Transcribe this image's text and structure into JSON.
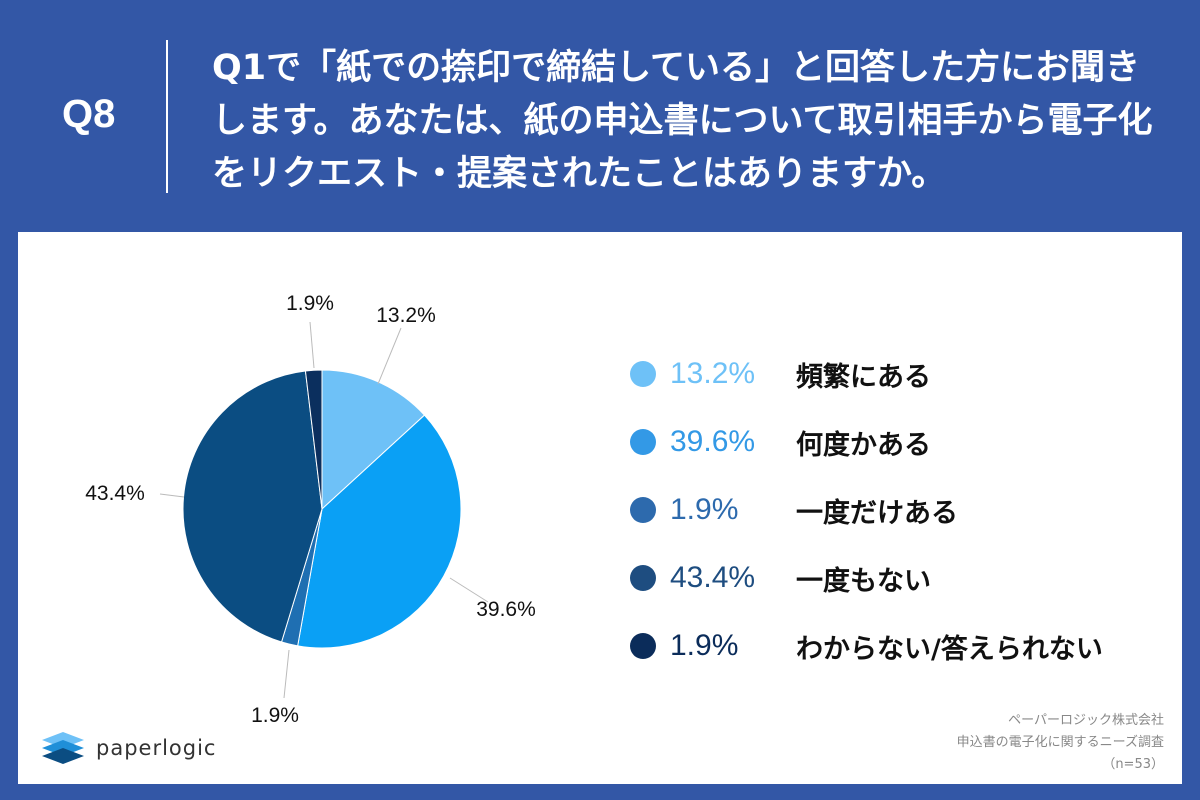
{
  "header": {
    "q_number": "Q8",
    "question_lines": [
      "Q1で「紙での捺印で締結している」と回答した方にお聞き",
      "します。あなたは、紙の申込書について取引相手から電子化",
      "をリクエスト・提案されたことはありますか。"
    ]
  },
  "chart_data": {
    "type": "pie",
    "slices": [
      {
        "label": "頻繁にある",
        "value": 13.2,
        "pct_label": "13.2%",
        "color": "#6ec1f7"
      },
      {
        "label": "何度かある",
        "value": 39.6,
        "pct_label": "39.6%",
        "color": "#0aa0f5"
      },
      {
        "label": "一度だけある",
        "value": 1.9,
        "pct_label": "1.9%",
        "color": "#1f6fb2"
      },
      {
        "label": "一度もない",
        "value": 43.4,
        "pct_label": "43.4%",
        "color": "#0b4d82"
      },
      {
        "label": "わからない/答えられない",
        "value": 1.9,
        "pct_label": "1.9%",
        "color": "#0b2f5e"
      }
    ],
    "legend_colors": [
      "#6ec1f7",
      "#3399e6",
      "#2d6aad",
      "#1e4d80",
      "#0b2c5a"
    ],
    "legend_placement": "right"
  },
  "legend": [
    {
      "pct": "13.2%",
      "label": "頻繁にある"
    },
    {
      "pct": "39.6%",
      "label": "何度かある"
    },
    {
      "pct": "1.9%",
      "label": "一度だけある"
    },
    {
      "pct": "43.4%",
      "label": "一度もない"
    },
    {
      "pct": "1.9%",
      "label": "わからない/答えられない"
    }
  ],
  "footer": {
    "company": "ペーパーロジック株式会社",
    "survey": "申込書の電子化に関するニーズ調査",
    "sample": "（n=53）"
  },
  "logo": {
    "text": "paperlogic",
    "icon": "paperlogic-stack-icon"
  }
}
